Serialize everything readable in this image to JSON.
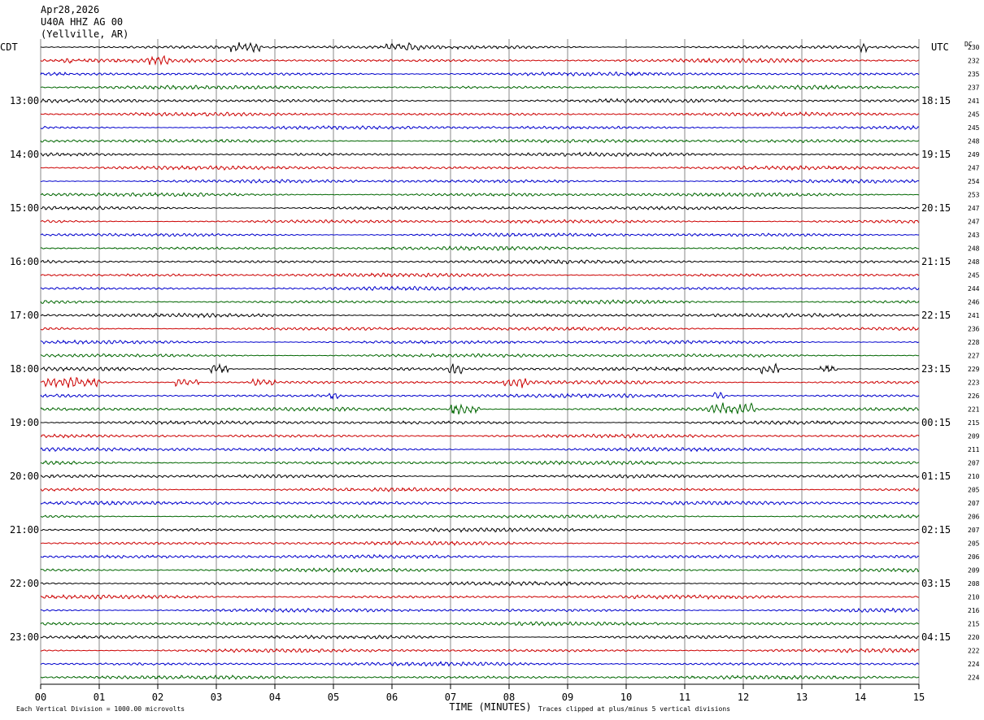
{
  "header": {
    "date": "Apr28,2026",
    "station": "U40A HHZ AG 00",
    "location": "(Yellville, AR)"
  },
  "left_zone_label": "CDT",
  "right_zone_label": "UTC",
  "dc_label": "DC",
  "chart_data": {
    "type": "line",
    "xlabel": "TIME (MINUTES)",
    "x_ticks": [
      "00",
      "01",
      "02",
      "03",
      "04",
      "05",
      "06",
      "07",
      "08",
      "09",
      "10",
      "11",
      "12",
      "13",
      "14",
      "15"
    ],
    "xlim": [
      0,
      15
    ],
    "trace_colors": [
      "#000000",
      "#cc0000",
      "#0000cc",
      "#006600"
    ],
    "left_time_labels": [
      "13:00",
      "14:00",
      "15:00",
      "16:00",
      "17:00",
      "18:00",
      "19:00",
      "20:00",
      "21:00",
      "22:00",
      "23:00"
    ],
    "right_time_labels": [
      "18:15",
      "19:15",
      "20:15",
      "21:15",
      "22:15",
      "23:15",
      "00:15",
      "01:15",
      "02:15",
      "03:15",
      "04:15"
    ],
    "dc_offsets": [
      "230",
      "232",
      "235",
      "237",
      "241",
      "245",
      "245",
      "248",
      "249",
      "247",
      "254",
      "253",
      "247",
      "247",
      "243",
      "248",
      "248",
      "245",
      "244",
      "246",
      "241",
      "236",
      "228",
      "227",
      "229",
      "223",
      "226",
      "221",
      "215",
      "209",
      "211",
      "207",
      "210",
      "205",
      "207",
      "206",
      "207",
      "205",
      "206",
      "209",
      "208",
      "210",
      "216",
      "215",
      "220",
      "222",
      "224",
      "224"
    ],
    "events": [
      {
        "row": 0,
        "start_min": 3.25,
        "end_min": 3.75,
        "amp": 2.2
      },
      {
        "row": 0,
        "start_min": 5.9,
        "end_min": 6.5,
        "amp": 2.2
      },
      {
        "row": 0,
        "start_min": 14.0,
        "end_min": 14.15,
        "amp": 2.0
      },
      {
        "row": 1,
        "start_min": 0.35,
        "end_min": 0.55,
        "amp": 1.6
      },
      {
        "row": 1,
        "start_min": 1.7,
        "end_min": 2.2,
        "amp": 1.8
      },
      {
        "row": 24,
        "start_min": 2.9,
        "end_min": 3.2,
        "amp": 1.6
      },
      {
        "row": 24,
        "start_min": 6.95,
        "end_min": 7.2,
        "amp": 2.4
      },
      {
        "row": 24,
        "start_min": 12.3,
        "end_min": 12.6,
        "amp": 1.8
      },
      {
        "row": 24,
        "start_min": 13.3,
        "end_min": 13.6,
        "amp": 1.8
      },
      {
        "row": 25,
        "start_min": 0.05,
        "end_min": 1.0,
        "amp": 2.0
      },
      {
        "row": 25,
        "start_min": 2.3,
        "end_min": 2.7,
        "amp": 1.5
      },
      {
        "row": 25,
        "start_min": 3.6,
        "end_min": 4.0,
        "amp": 1.5
      },
      {
        "row": 25,
        "start_min": 7.9,
        "end_min": 8.35,
        "amp": 2.0
      },
      {
        "row": 26,
        "start_min": 4.9,
        "end_min": 5.1,
        "amp": 1.6
      },
      {
        "row": 26,
        "start_min": 11.5,
        "end_min": 11.7,
        "amp": 1.6
      },
      {
        "row": 27,
        "start_min": 7.0,
        "end_min": 7.5,
        "amp": 2.2
      },
      {
        "row": 27,
        "start_min": 11.4,
        "end_min": 12.2,
        "amp": 2.4
      }
    ]
  },
  "footer": {
    "scale_note": "Each Vertical Division = 1000.00 microvolts",
    "clip_note": "Traces clipped at plus/minus 5 vertical divisions"
  }
}
